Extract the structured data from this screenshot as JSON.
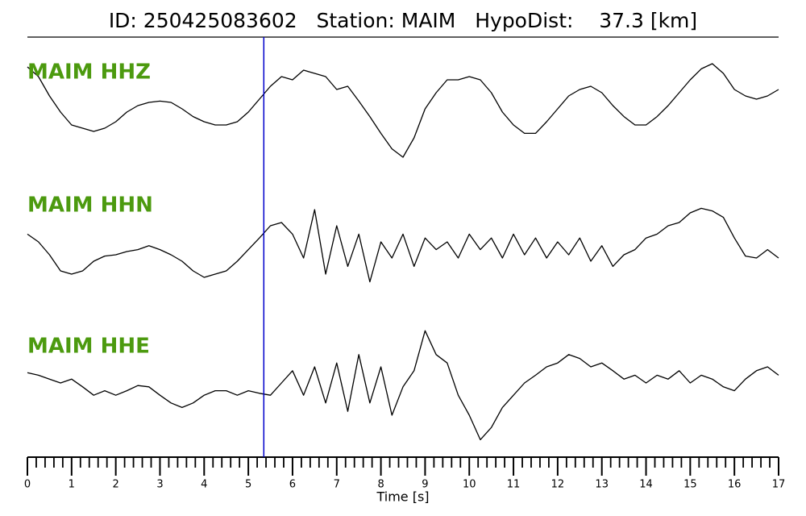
{
  "chart_data": {
    "type": "line",
    "title": "ID: 250425083602   Station: MAIM   HypoDist:    37.3 [km]",
    "x_label": "Time [s]",
    "label_color": "#4c9a0f",
    "pick_time": 5.35,
    "pick_color": "#0000cc",
    "xlim": [
      0,
      17
    ],
    "xticks": [
      0,
      1,
      2,
      3,
      4,
      5,
      6,
      7,
      8,
      9,
      10,
      11,
      12,
      13,
      14,
      15,
      16,
      17
    ],
    "xminorticks": [
      0.2,
      0.4,
      0.6,
      0.8,
      1.2,
      1.4,
      1.6,
      1.8,
      2.2,
      2.4,
      2.6,
      2.8,
      3.2,
      3.4,
      3.6,
      3.8,
      4.2,
      4.4,
      4.6,
      4.8,
      5.2,
      5.4,
      5.6,
      5.8,
      6.2,
      6.4,
      6.6,
      6.8,
      7.2,
      7.4,
      7.6,
      7.8,
      8.2,
      8.4,
      8.6,
      8.8,
      9.2,
      9.4,
      9.6,
      9.8,
      10.2,
      10.4,
      10.6,
      10.8,
      11.2,
      11.4,
      11.6,
      11.8,
      12.2,
      12.4,
      12.6,
      12.8,
      13.2,
      13.4,
      13.6,
      13.8,
      14.2,
      14.4,
      14.6,
      14.8,
      15.2,
      15.4,
      15.6,
      15.8,
      16.2,
      16.4,
      16.6,
      16.8
    ],
    "ylim": [
      -1,
      1
    ],
    "x": [
      0,
      0.25,
      0.5,
      0.75,
      1,
      1.25,
      1.5,
      1.75,
      2,
      2.25,
      2.5,
      2.75,
      3,
      3.25,
      3.5,
      3.75,
      4,
      4.25,
      4.5,
      4.75,
      5,
      5.25,
      5.5,
      5.75,
      6,
      6.25,
      6.5,
      6.75,
      7,
      7.25,
      7.5,
      7.75,
      8,
      8.25,
      8.5,
      8.75,
      9,
      9.25,
      9.5,
      9.75,
      10,
      10.25,
      10.5,
      10.75,
      11,
      11.25,
      11.5,
      11.75,
      12,
      12.25,
      12.5,
      12.75,
      13,
      13.25,
      13.5,
      13.75,
      14,
      14.25,
      14.5,
      14.75,
      15,
      15.25,
      15.5,
      15.75,
      16,
      16.25,
      16.5,
      16.75,
      17
    ],
    "series": [
      {
        "name": "MAIM HHZ",
        "color": "#000000",
        "values": [
          0.65,
          0.5,
          0.2,
          -0.05,
          -0.25,
          -0.3,
          -0.35,
          -0.3,
          -0.2,
          -0.05,
          0.05,
          0.1,
          0.12,
          0.1,
          0,
          -0.12,
          -0.2,
          -0.25,
          -0.25,
          -0.2,
          -0.05,
          0.15,
          0.35,
          0.5,
          0.45,
          0.6,
          0.55,
          0.5,
          0.3,
          0.35,
          0.12,
          -0.12,
          -0.38,
          -0.62,
          -0.75,
          -0.45,
          0,
          0.25,
          0.45,
          0.45,
          0.5,
          0.45,
          0.25,
          -0.05,
          -0.25,
          -0.38,
          -0.38,
          -0.2,
          0,
          0.2,
          0.3,
          0.35,
          0.25,
          0.05,
          -0.12,
          -0.25,
          -0.25,
          -0.12,
          0.05,
          0.25,
          0.45,
          0.62,
          0.7,
          0.55,
          0.3,
          0.2,
          0.15,
          0.2,
          0.3
        ]
      },
      {
        "name": "MAIM HHN",
        "color": "#000000",
        "values": [
          0.12,
          0,
          -0.2,
          -0.45,
          -0.5,
          -0.45,
          -0.3,
          -0.22,
          -0.2,
          -0.15,
          -0.12,
          -0.06,
          -0.12,
          -0.2,
          -0.3,
          -0.45,
          -0.55,
          -0.5,
          -0.45,
          -0.3,
          -0.12,
          0.06,
          0.25,
          0.3,
          0.12,
          -0.25,
          0.5,
          -0.5,
          0.25,
          -0.38,
          0.12,
          -0.62,
          0,
          -0.25,
          0.12,
          -0.38,
          0.06,
          -0.12,
          0,
          -0.25,
          0.12,
          -0.12,
          0.06,
          -0.25,
          0.12,
          -0.2,
          0.06,
          -0.25,
          0,
          -0.2,
          0.06,
          -0.3,
          -0.06,
          -0.38,
          -0.2,
          -0.12,
          0.06,
          0.12,
          0.25,
          0.3,
          0.45,
          0.52,
          0.48,
          0.38,
          0.06,
          -0.22,
          -0.25,
          -0.12,
          -0.25
        ]
      },
      {
        "name": "MAIM HHE",
        "color": "#000000",
        "values": [
          0.16,
          0.12,
          0.06,
          0,
          0.06,
          -0.06,
          -0.19,
          -0.12,
          -0.19,
          -0.12,
          -0.04,
          -0.06,
          -0.19,
          -0.31,
          -0.38,
          -0.31,
          -0.19,
          -0.12,
          -0.12,
          -0.19,
          -0.12,
          -0.16,
          -0.19,
          0,
          0.19,
          -0.19,
          0.25,
          -0.31,
          0.31,
          -0.44,
          0.44,
          -0.31,
          0.25,
          -0.5,
          -0.06,
          0.19,
          0.81,
          0.44,
          0.31,
          -0.19,
          -0.5,
          -0.88,
          -0.69,
          -0.38,
          -0.19,
          0,
          0.12,
          0.25,
          0.31,
          0.44,
          0.38,
          0.25,
          0.31,
          0.19,
          0.06,
          0.12,
          0,
          0.12,
          0.06,
          0.19,
          0,
          0.12,
          0.06,
          -0.06,
          -0.12,
          0.06,
          0.19,
          0.25,
          0.12
        ]
      }
    ]
  }
}
